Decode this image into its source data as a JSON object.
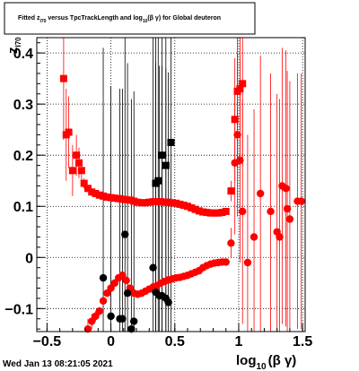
{
  "title": {
    "text_prefix": "Fitted  z",
    "z_subscript": "I70",
    "text_middle": "  versus  TpcTrackLength and log",
    "log_subscript": "10",
    "text_suffix": "(β γ) for Global deuteron"
  },
  "footer": {
    "date": "Wed Jan 13 08:21:05 2021"
  },
  "colors": {
    "red": "#ff0000",
    "black": "#000000",
    "frame": "#000000"
  },
  "chart_data": {
    "type": "scatter",
    "grid": true,
    "xlim": [
      -0.58,
      1.52
    ],
    "ylim": [
      -0.145,
      0.43
    ],
    "x_ticks": [
      {
        "value": -0.5,
        "label": "−0.5"
      },
      {
        "value": 0,
        "label": "0"
      },
      {
        "value": 0.5,
        "label": "0.5"
      },
      {
        "value": 1,
        "label": "1"
      },
      {
        "value": 1.5,
        "label": "1.5"
      }
    ],
    "y_ticks": [
      {
        "value": -0.1,
        "label": "−0.1"
      },
      {
        "value": 0,
        "label": "0"
      },
      {
        "value": 0.1,
        "label": "0.1"
      },
      {
        "value": 0.2,
        "label": "0.2"
      },
      {
        "value": 0.3,
        "label": "0.3"
      },
      {
        "value": 0.4,
        "label": "0.4"
      }
    ],
    "xlabel": {
      "main": "log",
      "sub": "10",
      "rest": "(β γ)"
    },
    "ylabel": {
      "main": "z",
      "sub": "I70"
    },
    "series": [
      {
        "marker": "square",
        "color": "#ff0000",
        "points": [
          {
            "x": -0.37,
            "y": 0.35,
            "err": 0.12
          },
          {
            "x": -0.35,
            "y": 0.24,
            "err": 0.09
          },
          {
            "x": -0.33,
            "y": 0.245,
            "err": 0.07
          },
          {
            "x": -0.3,
            "y": 0.17,
            "err": 0.05
          },
          {
            "x": -0.27,
            "y": 0.2,
            "err": 0.04
          },
          {
            "x": -0.25,
            "y": 0.185,
            "err": 0.03
          },
          {
            "x": -0.23,
            "y": 0.17,
            "err": 0.02
          },
          {
            "x": -0.21,
            "y": 0.145,
            "err": 0.01
          },
          {
            "x": -0.18,
            "y": 0.135,
            "err": 0.006
          },
          {
            "x": -0.15,
            "y": 0.128,
            "err": 0.004
          },
          {
            "x": -0.12,
            "y": 0.125
          },
          {
            "x": -0.09,
            "y": 0.122
          },
          {
            "x": -0.06,
            "y": 0.12
          },
          {
            "x": -0.03,
            "y": 0.118
          },
          {
            "x": 0.0,
            "y": 0.117
          },
          {
            "x": 0.03,
            "y": 0.116
          },
          {
            "x": 0.06,
            "y": 0.115
          },
          {
            "x": 0.09,
            "y": 0.114
          },
          {
            "x": 0.12,
            "y": 0.113
          },
          {
            "x": 0.15,
            "y": 0.112
          },
          {
            "x": 0.18,
            "y": 0.11
          },
          {
            "x": 0.21,
            "y": 0.108
          },
          {
            "x": 0.24,
            "y": 0.107
          },
          {
            "x": 0.27,
            "y": 0.107
          },
          {
            "x": 0.3,
            "y": 0.108
          },
          {
            "x": 0.33,
            "y": 0.109
          },
          {
            "x": 0.36,
            "y": 0.109
          },
          {
            "x": 0.39,
            "y": 0.109
          },
          {
            "x": 0.42,
            "y": 0.108
          },
          {
            "x": 0.45,
            "y": 0.108
          },
          {
            "x": 0.48,
            "y": 0.107
          },
          {
            "x": 0.51,
            "y": 0.106
          },
          {
            "x": 0.54,
            "y": 0.104
          },
          {
            "x": 0.57,
            "y": 0.102
          },
          {
            "x": 0.6,
            "y": 0.1
          },
          {
            "x": 0.63,
            "y": 0.097
          },
          {
            "x": 0.66,
            "y": 0.094
          },
          {
            "x": 0.69,
            "y": 0.091
          },
          {
            "x": 0.72,
            "y": 0.089
          },
          {
            "x": 0.75,
            "y": 0.088
          },
          {
            "x": 0.78,
            "y": 0.087
          },
          {
            "x": 0.81,
            "y": 0.087
          },
          {
            "x": 0.84,
            "y": 0.087
          },
          {
            "x": 0.87,
            "y": 0.088
          },
          {
            "x": 0.9,
            "y": 0.09
          },
          {
            "x": 0.94,
            "y": 0.13,
            "err": 0.02
          },
          {
            "x": 0.97,
            "y": 0.27,
            "err": 0.12
          },
          {
            "x": 0.99,
            "y": 0.325,
            "err": 0.15
          },
          {
            "x": 1.01,
            "y": 0.33,
            "err": 0.15
          },
          {
            "x": 1.03,
            "y": 0.34,
            "err": 0.16
          }
        ]
      },
      {
        "marker": "circle",
        "color": "#ff0000",
        "points": [
          {
            "x": -0.18,
            "y": -0.14,
            "err": 0.02
          },
          {
            "x": -0.15,
            "y": -0.125,
            "err": 0.015
          },
          {
            "x": -0.12,
            "y": -0.115,
            "err": 0.01
          },
          {
            "x": -0.09,
            "y": -0.105,
            "err": 0.008
          },
          {
            "x": -0.06,
            "y": -0.085,
            "err": 0.006
          },
          {
            "x": -0.03,
            "y": -0.07
          },
          {
            "x": 0.0,
            "y": -0.06
          },
          {
            "x": 0.03,
            "y": -0.05
          },
          {
            "x": 0.06,
            "y": -0.04
          },
          {
            "x": 0.09,
            "y": -0.035
          },
          {
            "x": 0.12,
            "y": -0.045
          },
          {
            "x": 0.15,
            "y": -0.06
          },
          {
            "x": 0.18,
            "y": -0.07
          },
          {
            "x": 0.21,
            "y": -0.072
          },
          {
            "x": 0.24,
            "y": -0.07
          },
          {
            "x": 0.27,
            "y": -0.066
          },
          {
            "x": 0.3,
            "y": -0.062
          },
          {
            "x": 0.33,
            "y": -0.058
          },
          {
            "x": 0.36,
            "y": -0.055
          },
          {
            "x": 0.39,
            "y": -0.05
          },
          {
            "x": 0.42,
            "y": -0.047
          },
          {
            "x": 0.45,
            "y": -0.044
          },
          {
            "x": 0.48,
            "y": -0.042
          },
          {
            "x": 0.51,
            "y": -0.04
          },
          {
            "x": 0.54,
            "y": -0.039
          },
          {
            "x": 0.57,
            "y": -0.037
          },
          {
            "x": 0.6,
            "y": -0.035
          },
          {
            "x": 0.63,
            "y": -0.032
          },
          {
            "x": 0.66,
            "y": -0.029
          },
          {
            "x": 0.69,
            "y": -0.026
          },
          {
            "x": 0.72,
            "y": -0.02
          },
          {
            "x": 0.75,
            "y": -0.016
          },
          {
            "x": 0.78,
            "y": -0.013
          },
          {
            "x": 0.81,
            "y": -0.011
          },
          {
            "x": 0.84,
            "y": -0.01
          },
          {
            "x": 0.87,
            "y": -0.009
          },
          {
            "x": 0.9,
            "y": -0.009
          },
          {
            "x": 0.94,
            "y": 0.028,
            "err": 0.03
          },
          {
            "x": 0.97,
            "y": 0.185,
            "err": 0.14
          },
          {
            "x": 0.99,
            "y": 0.24,
            "err": 0.16
          },
          {
            "x": 1.01,
            "y": 0.19,
            "err": 0.2
          },
          {
            "x": 1.03,
            "y": 0.09,
            "err": 0.22
          },
          {
            "x": 1.07,
            "y": -0.01,
            "err": 0.25
          },
          {
            "x": 1.12,
            "y": 0.04,
            "err": 0.25
          },
          {
            "x": 1.17,
            "y": 0.125,
            "err": 0.27
          },
          {
            "x": 1.25,
            "y": 0.09,
            "err": 0.27
          },
          {
            "x": 1.3,
            "y": 0.05,
            "err": 0.27
          },
          {
            "x": 1.32,
            "y": 0.04,
            "err": 0.27
          },
          {
            "x": 1.34,
            "y": 0.14,
            "err": 0.27
          },
          {
            "x": 1.37,
            "y": 0.135,
            "err": 0.27
          },
          {
            "x": 1.38,
            "y": 0.095,
            "err": 0.27
          },
          {
            "x": 1.4,
            "y": 0.075,
            "err": 0.27
          },
          {
            "x": 1.46,
            "y": 0.11,
            "err": 0.25
          },
          {
            "x": 1.49,
            "y": 0.11,
            "err": 0.25
          }
        ]
      },
      {
        "marker": "square",
        "color": "#000000",
        "points": [
          {
            "x": 0.35,
            "y": 0.145,
            "err": 0.45
          },
          {
            "x": 0.37,
            "y": 0.15,
            "err": 0.45
          },
          {
            "x": 0.4,
            "y": 0.2,
            "err": 0.45
          },
          {
            "x": 0.43,
            "y": 0.18,
            "err": 0.45
          },
          {
            "x": 0.47,
            "y": 0.225,
            "err": 0.45
          }
        ]
      },
      {
        "marker": "circle",
        "color": "#000000",
        "points": [
          {
            "x": -0.06,
            "y": -0.04,
            "err": 0.45
          },
          {
            "x": 0.0,
            "y": -0.115,
            "err": 0.45
          },
          {
            "x": 0.07,
            "y": -0.12,
            "err": 0.45
          },
          {
            "x": 0.09,
            "y": -0.12,
            "err": 0.45
          },
          {
            "x": 0.11,
            "y": 0.045,
            "err": 0.45
          },
          {
            "x": 0.13,
            "y": -0.07,
            "err": 0.45
          },
          {
            "x": 0.16,
            "y": -0.14,
            "err": 0.45
          },
          {
            "x": 0.18,
            "y": -0.125,
            "err": 0.45
          },
          {
            "x": 0.33,
            "y": -0.02,
            "err": 0.45
          },
          {
            "x": 0.35,
            "y": -0.068,
            "err": 0.45
          },
          {
            "x": 0.38,
            "y": -0.075,
            "err": 0.45
          },
          {
            "x": 0.4,
            "y": -0.075,
            "err": 0.45
          },
          {
            "x": 0.43,
            "y": -0.08,
            "err": 0.45
          },
          {
            "x": 0.45,
            "y": -0.088,
            "err": 0.45
          }
        ]
      }
    ]
  }
}
